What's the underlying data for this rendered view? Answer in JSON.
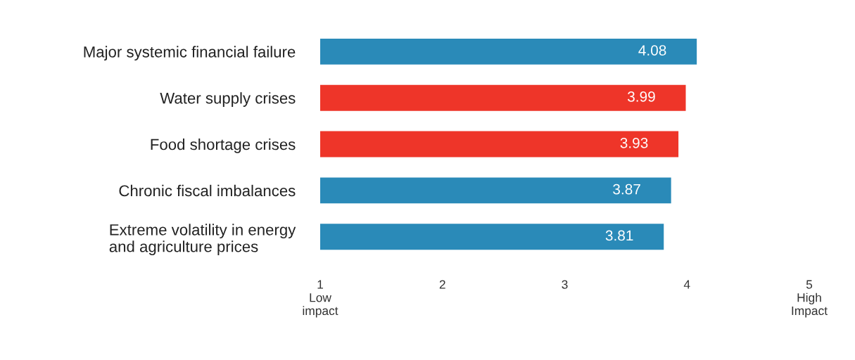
{
  "chart_data": {
    "type": "bar",
    "orientation": "horizontal",
    "categories": [
      "Major systemic financial failure",
      "Water supply crises",
      "Food shortage crises",
      "Chronic fiscal imbalances",
      "Extreme volatility in energy\nand agriculture prices"
    ],
    "values": [
      4.08,
      3.99,
      3.93,
      3.87,
      3.81
    ],
    "colors": [
      "#2a8ab8",
      "#ee3529",
      "#ee3529",
      "#2a8ab8",
      "#2a8ab8"
    ],
    "xlim": [
      1,
      5
    ],
    "xticks": [
      {
        "value": 1,
        "label": "1\nLow\nimpact"
      },
      2,
      3,
      4,
      {
        "value": 5,
        "label": "5\nHigh\nImpact"
      }
    ],
    "data_labels": true,
    "grid": false,
    "legend": false
  }
}
